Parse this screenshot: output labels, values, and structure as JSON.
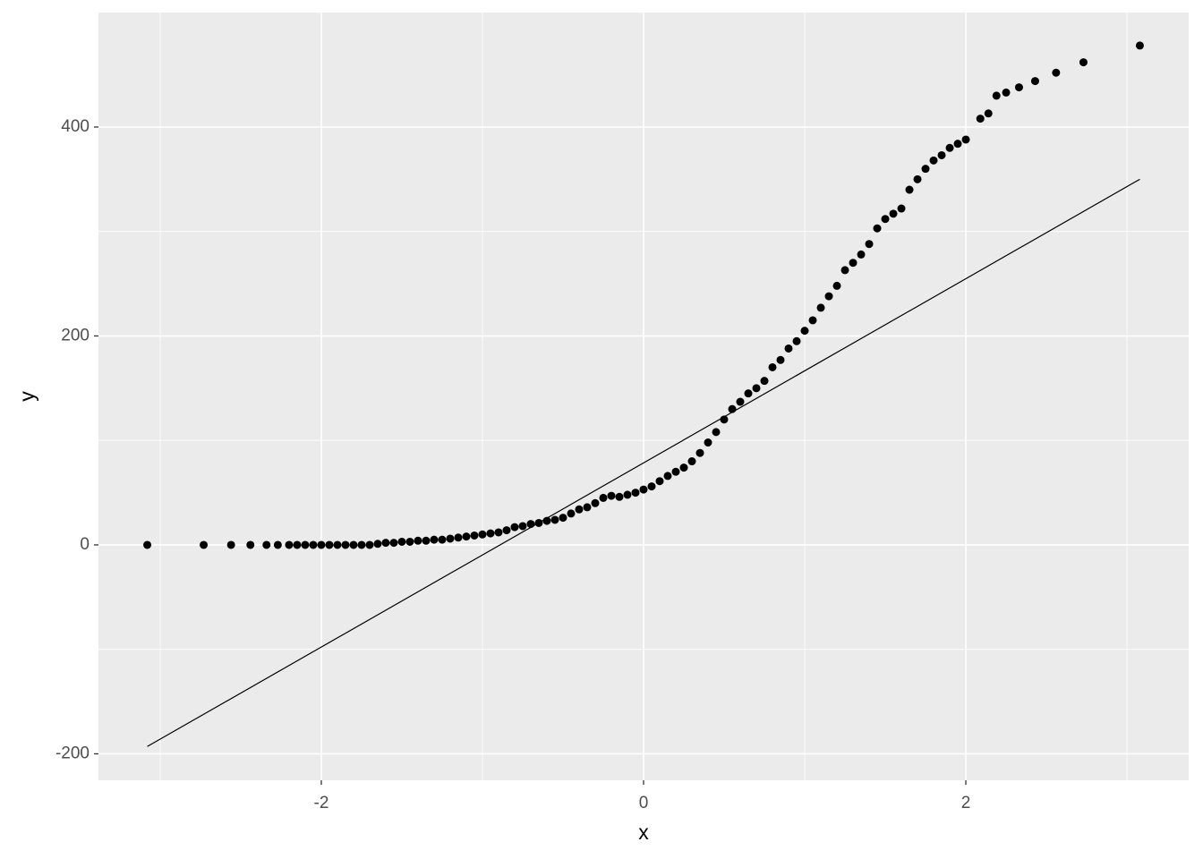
{
  "chart_data": {
    "type": "scatter",
    "x_label": "x",
    "y_label": "y",
    "xlim": [
      -3.383,
      3.383
    ],
    "ylim": [
      -225.3,
      509.6
    ],
    "xticks": [
      -2,
      0,
      2
    ],
    "yticks": [
      -200,
      0,
      200,
      400
    ],
    "xminor": [
      -3,
      -1,
      1,
      3
    ],
    "yminor": [
      -100,
      100,
      300
    ],
    "grid": true,
    "color": "#000000",
    "x": [
      -3.08,
      -2.73,
      -2.56,
      -2.44,
      -2.34,
      -2.27,
      -2.2,
      -2.15,
      -2.1,
      -2.05,
      -2.0,
      -1.95,
      -1.9,
      -1.85,
      -1.8,
      -1.75,
      -1.7,
      -1.65,
      -1.6,
      -1.55,
      -1.5,
      -1.45,
      -1.4,
      -1.35,
      -1.3,
      -1.25,
      -1.2,
      -1.15,
      -1.1,
      -1.05,
      -1.0,
      -0.95,
      -0.9,
      -0.85,
      -0.8,
      -0.75,
      -0.7,
      -0.65,
      -0.6,
      -0.55,
      -0.5,
      -0.45,
      -0.4,
      -0.35,
      -0.3,
      -0.25,
      -0.2,
      -0.15,
      -0.1,
      -0.05,
      0.0,
      0.05,
      0.1,
      0.15,
      0.2,
      0.25,
      0.3,
      0.35,
      0.4,
      0.45,
      0.5,
      0.55,
      0.6,
      0.65,
      0.7,
      0.75,
      0.8,
      0.85,
      0.9,
      0.95,
      1.0,
      1.05,
      1.1,
      1.15,
      1.2,
      1.25,
      1.3,
      1.35,
      1.4,
      1.45,
      1.5,
      1.55,
      1.6,
      1.65,
      1.7,
      1.75,
      1.8,
      1.85,
      1.9,
      1.95,
      2.0,
      2.09,
      2.14,
      2.19,
      2.25,
      2.33,
      2.43,
      2.56,
      2.73,
      3.08
    ],
    "y": [
      0,
      0,
      0,
      0,
      0,
      0,
      0,
      0,
      0,
      0,
      0,
      0,
      0,
      0,
      0,
      0,
      0,
      1,
      2,
      2,
      3,
      3,
      4,
      4,
      5,
      5,
      6,
      7,
      8,
      9,
      10,
      11,
      12,
      14,
      17,
      18,
      20,
      21,
      23,
      24,
      26,
      30,
      34,
      36,
      40,
      45,
      47,
      46,
      48,
      50,
      53,
      56,
      61,
      66,
      70,
      74,
      80,
      88,
      98,
      108,
      120,
      130,
      137,
      145,
      150,
      157,
      170,
      177,
      188,
      195,
      205,
      215,
      227,
      238,
      248,
      263,
      270,
      278,
      288,
      303,
      312,
      317,
      322,
      340,
      350,
      360,
      368,
      373,
      380,
      384,
      388,
      408,
      413,
      430,
      433,
      438,
      444,
      452,
      462,
      478
    ],
    "line": {
      "x": [
        -3.08,
        3.08
      ],
      "y": [
        -193,
        350
      ],
      "color": "#000000"
    }
  }
}
